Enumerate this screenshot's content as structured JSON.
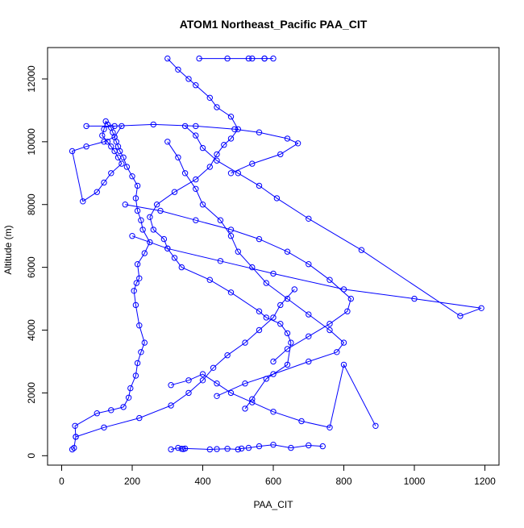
{
  "chart_data": {
    "type": "line",
    "title": "ATOM1 Northeast_Pacific PAA_CIT",
    "xlabel": "PAA_CIT",
    "ylabel": "Altitude (m)",
    "xlim": [
      -40,
      1240
    ],
    "ylim": [
      -300,
      13000
    ],
    "xticks": [
      0,
      200,
      400,
      600,
      800,
      1000,
      1200
    ],
    "xtick_labels": [
      "0",
      "200",
      "400",
      "600",
      "800",
      "1000",
      "1200"
    ],
    "yticks": [
      0,
      2000,
      4000,
      6000,
      8000,
      10000,
      12000
    ],
    "ytick_labels": [
      "0",
      "2000",
      "4000",
      "6000",
      "8000",
      "10000",
      "12000"
    ],
    "grid": false,
    "legend": "none",
    "series_color": "#0000ff",
    "marker": "open-circle",
    "series": [
      {
        "x": [
          30,
          35,
          40,
          38,
          100,
          140,
          175,
          190,
          195,
          210,
          215,
          225,
          235,
          220,
          210,
          205,
          212,
          220,
          215,
          235,
          250,
          230,
          225,
          215,
          210,
          215,
          200,
          185,
          175,
          165,
          160,
          155,
          150,
          145,
          140,
          130,
          125,
          120,
          115,
          130,
          140,
          150,
          160,
          170,
          140,
          120,
          100,
          60,
          30,
          70,
          120,
          150,
          170
        ],
        "y": [
          200,
          250,
          600,
          950,
          1350,
          1450,
          1550,
          1850,
          2150,
          2550,
          2950,
          3300,
          3600,
          4150,
          4800,
          5250,
          5500,
          5650,
          6100,
          6450,
          6800,
          7200,
          7500,
          7800,
          8200,
          8600,
          8900,
          9200,
          9500,
          9700,
          9850,
          10000,
          10150,
          10300,
          10450,
          10550,
          10650,
          10400,
          10200,
          10000,
          9850,
          9700,
          9500,
          9300,
          9000,
          8700,
          8400,
          8100,
          9700,
          9850,
          10000,
          10150,
          10500
        ]
      },
      {
        "x": [
          310,
          330,
          340,
          345,
          350,
          420,
          440,
          470,
          500,
          510,
          530,
          560,
          600,
          650,
          700,
          740
        ],
        "y": [
          200,
          250,
          220,
          210,
          230,
          200,
          210,
          220,
          200,
          230,
          250,
          300,
          350,
          250,
          330,
          300
        ]
      },
      {
        "x": [
          520,
          540,
          580,
          640,
          650,
          640,
          620,
          580,
          560,
          480,
          420,
          340,
          320,
          300,
          290,
          260,
          250,
          270,
          320,
          380,
          420,
          440,
          460,
          480,
          500,
          480,
          440,
          420,
          380,
          360,
          330,
          300
        ],
        "y": [
          1500,
          1800,
          2450,
          2900,
          3600,
          3900,
          4200,
          4400,
          4600,
          5200,
          5600,
          6000,
          6300,
          6600,
          6900,
          7200,
          7600,
          8000,
          8400,
          8800,
          9200,
          9600,
          9900,
          10100,
          10400,
          10800,
          11100,
          11400,
          11800,
          12000,
          12300,
          12650
        ]
      },
      {
        "x": [
          440,
          520,
          600,
          700,
          780,
          800,
          760,
          700,
          640,
          580,
          540,
          500,
          480,
          450,
          400,
          380,
          350,
          330,
          300
        ],
        "y": [
          1900,
          2300,
          2600,
          3000,
          3300,
          3600,
          4000,
          4500,
          5000,
          5500,
          6000,
          6500,
          7000,
          7500,
          8000,
          8500,
          9000,
          9500,
          10000
        ]
      },
      {
        "x": [
          200,
          300,
          450,
          600,
          800,
          1000,
          1190,
          1130,
          850,
          700,
          610,
          560,
          500,
          440,
          400,
          380,
          350
        ],
        "y": [
          7000,
          6600,
          6200,
          5800,
          5300,
          5000,
          4700,
          4450,
          6550,
          7550,
          8200,
          8600,
          9000,
          9400,
          9800,
          10200,
          10500
        ]
      },
      {
        "x": [
          40,
          120,
          220,
          310,
          360,
          400,
          430,
          470,
          520,
          560,
          600,
          620,
          660
        ],
        "y": [
          600,
          900,
          1200,
          1600,
          2000,
          2400,
          2800,
          3200,
          3600,
          4000,
          4400,
          4800,
          5300
        ]
      },
      {
        "x": [
          180,
          280,
          380,
          480,
          560,
          640,
          700,
          760,
          820,
          810,
          760,
          700,
          640,
          600
        ],
        "y": [
          8000,
          7800,
          7500,
          7200,
          6900,
          6500,
          6100,
          5600,
          5000,
          4600,
          4200,
          3800,
          3400,
          3000
        ]
      },
      {
        "x": [
          70,
          150,
          260,
          380,
          490,
          560,
          640,
          670,
          620,
          540,
          480
        ],
        "y": [
          10500,
          10500,
          10550,
          10500,
          10400,
          10300,
          10100,
          9950,
          9600,
          9300,
          9000
        ]
      },
      {
        "x": [
          390,
          470,
          530,
          575,
          600,
          575,
          540
        ],
        "y": [
          12650,
          12650,
          12650,
          12650,
          12650,
          12650,
          12650
        ]
      },
      {
        "x": [
          310,
          360,
          400,
          440,
          480,
          540,
          600,
          680,
          760,
          800,
          890
        ],
        "y": [
          2250,
          2400,
          2600,
          2300,
          2000,
          1700,
          1400,
          1100,
          900,
          2900,
          950
        ]
      }
    ]
  }
}
